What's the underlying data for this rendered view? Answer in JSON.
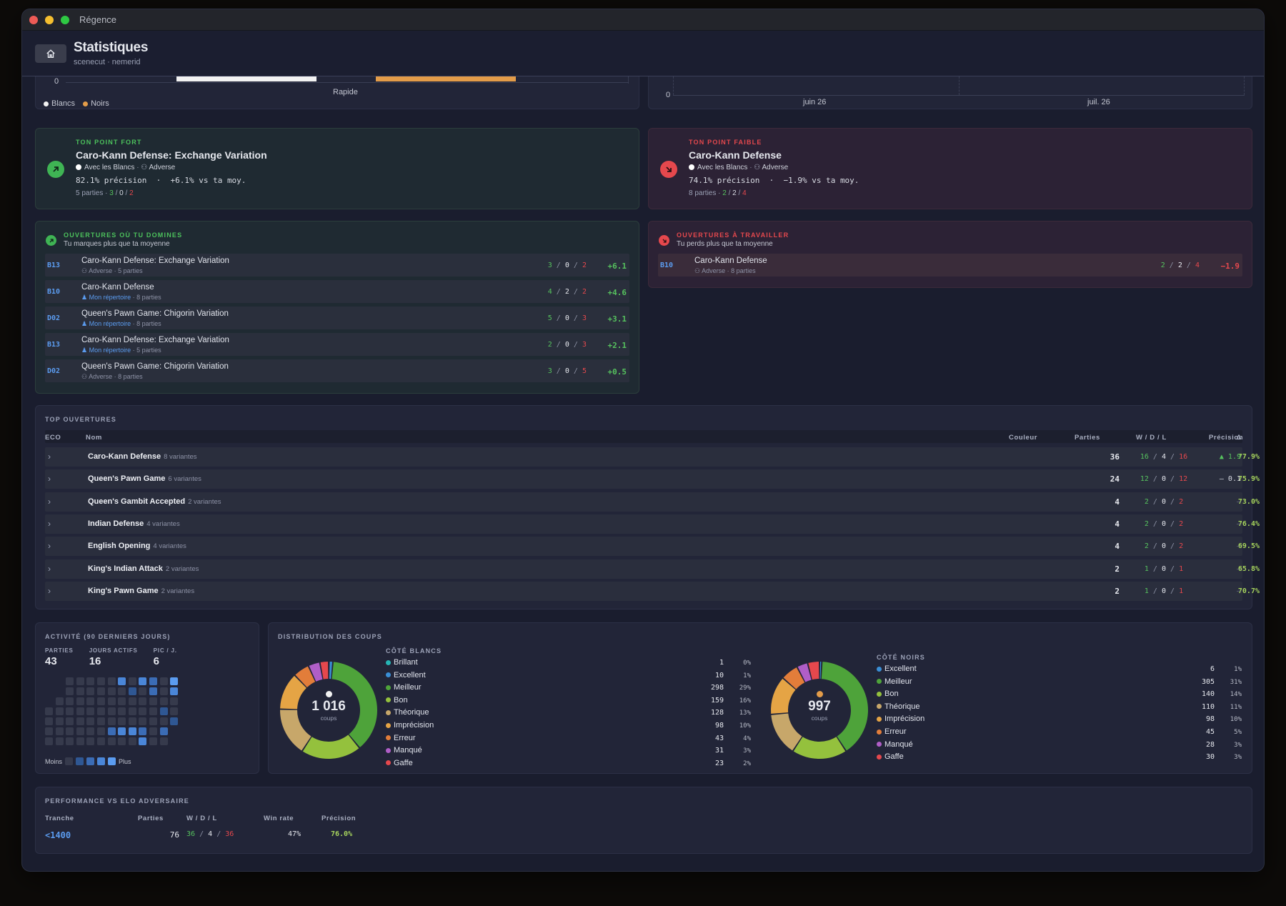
{
  "window": {
    "title": "Régence"
  },
  "header": {
    "title": "Statistiques",
    "subtitle": "scenecut · nemerid"
  },
  "bar_chart": {
    "zero": "0",
    "category": "Rapide",
    "legend": [
      {
        "label": "Blancs",
        "color": "#f2f2f2"
      },
      {
        "label": "Noirs",
        "color": "#e39c49"
      }
    ]
  },
  "line_chart": {
    "zero": "0",
    "x_labels": [
      "juin 26",
      "juil. 26"
    ]
  },
  "strength": {
    "label": "TON POINT FORT",
    "opening": "Caro-Kann Defense: Exchange Variation",
    "color": "Avec les Blancs",
    "source": "Adverse",
    "precision": "82.1% précision",
    "diff": "+6.1% vs ta moy.",
    "games": "5 parties",
    "w": "3",
    "d": "0",
    "l": "2"
  },
  "weakness": {
    "label": "TON POINT FAIBLE",
    "opening": "Caro-Kann Defense",
    "color": "Avec les Blancs",
    "source": "Adverse",
    "precision": "74.1% précision",
    "diff": "−1.9% vs ta moy.",
    "games": "8 parties",
    "w": "2",
    "d": "2",
    "l": "4"
  },
  "dominate": {
    "title": "OUVERTURES OÙ TU DOMINES",
    "subtitle": "Tu marques plus que ta moyenne",
    "rows": [
      {
        "eco": "B13",
        "name": "Caro-Kann Defense: Exchange Variation",
        "source": "Adverse",
        "games": "5 parties",
        "w": "3",
        "d": "0",
        "l": "2",
        "delta": "+6.1"
      },
      {
        "eco": "B10",
        "name": "Caro-Kann Defense",
        "source": "Mon répertoire",
        "games": "8 parties",
        "w": "4",
        "d": "2",
        "l": "2",
        "delta": "+4.6"
      },
      {
        "eco": "D02",
        "name": "Queen's Pawn Game: Chigorin Variation",
        "source": "Mon répertoire",
        "games": "8 parties",
        "w": "5",
        "d": "0",
        "l": "3",
        "delta": "+3.1"
      },
      {
        "eco": "B13",
        "name": "Caro-Kann Defense: Exchange Variation",
        "source": "Mon répertoire",
        "games": "5 parties",
        "w": "2",
        "d": "0",
        "l": "3",
        "delta": "+2.1"
      },
      {
        "eco": "D02",
        "name": "Queen's Pawn Game: Chigorin Variation",
        "source": "Adverse",
        "games": "8 parties",
        "w": "3",
        "d": "0",
        "l": "5",
        "delta": "+0.5"
      }
    ]
  },
  "work": {
    "title": "OUVERTURES À TRAVAILLER",
    "subtitle": "Tu perds plus que ta moyenne",
    "rows": [
      {
        "eco": "B10",
        "name": "Caro-Kann Defense",
        "source": "Adverse",
        "games": "8 parties",
        "w": "2",
        "d": "2",
        "l": "4",
        "delta": "−1.9"
      }
    ]
  },
  "top": {
    "title": "TOP OUVERTURES",
    "headers": {
      "eco": "ECO",
      "name": "Nom",
      "color": "Couleur",
      "games": "Parties",
      "wdl": "W / D / L",
      "precision": "Précision",
      "delta": "Δ"
    },
    "rows": [
      {
        "name": "Caro-Kann Defense",
        "variants": "8 variantes",
        "games": "36",
        "w": "16",
        "d": "4",
        "l": "16",
        "precision": "77.9%",
        "delta": "▲ 1.9",
        "delta_color": "#56c25e"
      },
      {
        "name": "Queen's Pawn Game",
        "variants": "6 variantes",
        "games": "24",
        "w": "12",
        "d": "0",
        "l": "12",
        "precision": "75.9%",
        "delta": "— 0.1",
        "delta_color": "#d9dce4"
      },
      {
        "name": "Queen's Gambit Accepted",
        "variants": "2 variantes",
        "games": "4",
        "w": "2",
        "d": "0",
        "l": "2",
        "precision": "73.0%",
        "delta": "—",
        "delta_color": "#6b7085"
      },
      {
        "name": "Indian Defense",
        "variants": "4 variantes",
        "games": "4",
        "w": "2",
        "d": "0",
        "l": "2",
        "precision": "76.4%",
        "delta": "—",
        "delta_color": "#6b7085"
      },
      {
        "name": "English Opening",
        "variants": "4 variantes",
        "games": "4",
        "w": "2",
        "d": "0",
        "l": "2",
        "precision": "69.5%",
        "delta": "—",
        "delta_color": "#6b7085"
      },
      {
        "name": "King's Indian Attack",
        "variants": "2 variantes",
        "games": "2",
        "w": "1",
        "d": "0",
        "l": "1",
        "precision": "65.8%",
        "delta": "—",
        "delta_color": "#6b7085"
      },
      {
        "name": "King's Pawn Game",
        "variants": "2 variantes",
        "games": "2",
        "w": "1",
        "d": "0",
        "l": "1",
        "precision": "70.7%",
        "delta": "—",
        "delta_color": "#6b7085"
      }
    ]
  },
  "activity": {
    "title": "ACTIVITÉ (90 DERNIERS JOURS)",
    "stats": [
      {
        "label": "PARTIES",
        "value": "43"
      },
      {
        "label": "JOURS ACTIFS",
        "value": "16"
      },
      {
        "label": "PIC / J.",
        "value": "6"
      }
    ],
    "less": "Moins",
    "more": "Plus"
  },
  "distribution": {
    "title": "DISTRIBUTION DES COUPS",
    "white": {
      "label": "CÔTÉ BLANCS",
      "total": "1 016",
      "unit": "coups",
      "items": [
        {
          "name": "Brillant",
          "count": 1,
          "pct": "0%",
          "color": "#26b5b5"
        },
        {
          "name": "Excellent",
          "count": 10,
          "pct": "1%",
          "color": "#3a8fd6"
        },
        {
          "name": "Meilleur",
          "count": 298,
          "pct": "29%",
          "color": "#4ea33a"
        },
        {
          "name": "Bon",
          "count": 159,
          "pct": "16%",
          "color": "#94c13d"
        },
        {
          "name": "Théorique",
          "count": 128,
          "pct": "13%",
          "color": "#c7a76a"
        },
        {
          "name": "Imprécision",
          "count": 98,
          "pct": "10%",
          "color": "#e5a445"
        },
        {
          "name": "Erreur",
          "count": 43,
          "pct": "4%",
          "color": "#e27d3a"
        },
        {
          "name": "Manqué",
          "count": 31,
          "pct": "3%",
          "color": "#b05ec7"
        },
        {
          "name": "Gaffe",
          "count": 23,
          "pct": "2%",
          "color": "#e5484d"
        }
      ]
    },
    "black": {
      "label": "CÔTÉ NOIRS",
      "total": "997",
      "unit": "coups",
      "items": [
        {
          "name": "Excellent",
          "count": 6,
          "pct": "1%",
          "color": "#3a8fd6"
        },
        {
          "name": "Meilleur",
          "count": 305,
          "pct": "31%",
          "color": "#4ea33a"
        },
        {
          "name": "Bon",
          "count": 140,
          "pct": "14%",
          "color": "#94c13d"
        },
        {
          "name": "Théorique",
          "count": 110,
          "pct": "11%",
          "color": "#c7a76a"
        },
        {
          "name": "Imprécision",
          "count": 98,
          "pct": "10%",
          "color": "#e5a445"
        },
        {
          "name": "Erreur",
          "count": 45,
          "pct": "5%",
          "color": "#e27d3a"
        },
        {
          "name": "Manqué",
          "count": 28,
          "pct": "3%",
          "color": "#b05ec7"
        },
        {
          "name": "Gaffe",
          "count": 30,
          "pct": "3%",
          "color": "#e5484d"
        }
      ]
    }
  },
  "elo": {
    "title": "PERFORMANCE VS ELO ADVERSAIRE",
    "headers": {
      "range": "Tranche",
      "games": "Parties",
      "wdl": "W / D / L",
      "winrate": "Win rate",
      "precision": "Précision"
    },
    "rows": [
      {
        "range": "<1400",
        "games": "76",
        "w": "36",
        "d": "4",
        "l": "36",
        "winrate": "47%",
        "precision": "76.0%"
      }
    ]
  }
}
